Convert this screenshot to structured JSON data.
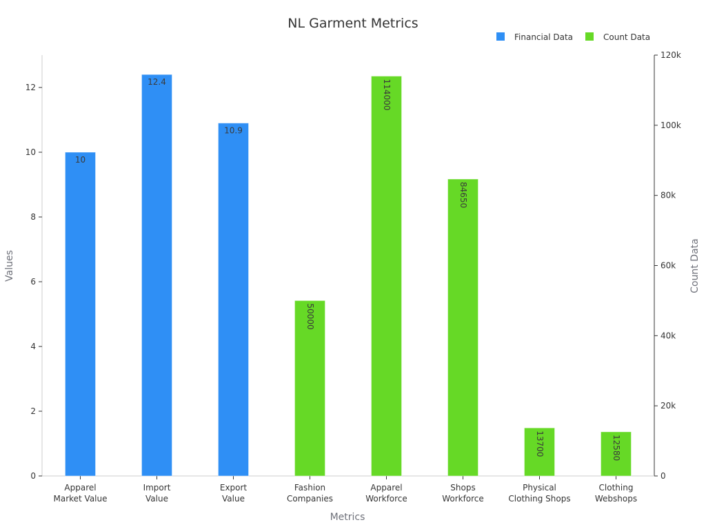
{
  "chart_data": {
    "type": "bar",
    "title": "NL Garment Metrics",
    "xlabel": "Metrics",
    "ylabel": "Values",
    "y2label": "Count Data",
    "ylim": [
      0,
      13
    ],
    "y2lim": [
      0,
      120000
    ],
    "yticks": [
      "0",
      "2",
      "4",
      "6",
      "8",
      "10",
      "12"
    ],
    "y2ticks": [
      "0",
      "20k",
      "40k",
      "60k",
      "80k",
      "100k",
      "120k"
    ],
    "categories": [
      [
        "Apparel",
        "Market Value"
      ],
      [
        "Import",
        "Value"
      ],
      [
        "Export",
        "Value"
      ],
      [
        "Fashion",
        "Companies"
      ],
      [
        "Apparel",
        "Workforce"
      ],
      [
        "Shops",
        "Workforce"
      ],
      [
        "Physical",
        "Clothing Shops"
      ],
      [
        "Clothing",
        "Webshops"
      ]
    ],
    "legend_position": "top-right",
    "series": [
      {
        "name": "Financial Data",
        "axis": "left",
        "color": "#2f8ff5",
        "values": [
          10,
          12.4,
          10.9,
          null,
          null,
          null,
          null,
          null
        ],
        "labels": [
          "10",
          "12.4",
          "10.9",
          "",
          "",
          "",
          "",
          ""
        ]
      },
      {
        "name": "Count Data",
        "axis": "right",
        "color": "#66d926",
        "values": [
          null,
          null,
          null,
          50000,
          114000,
          84650,
          13700,
          12580
        ],
        "labels": [
          "",
          "",
          "",
          "50000",
          "114000",
          "84650",
          "13700",
          "12580"
        ]
      }
    ]
  }
}
